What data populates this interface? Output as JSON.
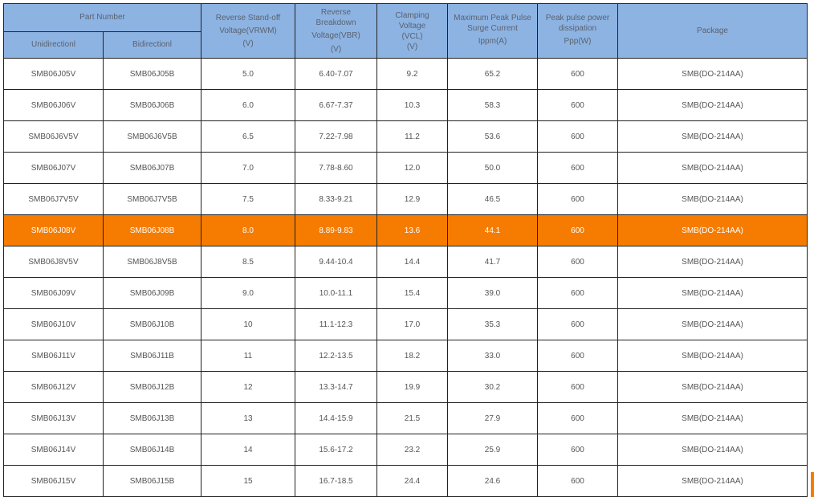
{
  "header": {
    "part_number": "Part Number",
    "unidirectional": "Unidirectionl",
    "bidirectional": "Bidirectionl",
    "vrwm": [
      "Reverse Stand-off",
      "Voltage(VRWM)",
      "(V)"
    ],
    "vbr": [
      "Reverse",
      "Breakdown",
      "Voltage(VBR)",
      "(V)"
    ],
    "vcl": [
      "Clamping",
      "Voltage",
      "(VCL)",
      "(V)"
    ],
    "ippm": [
      "Maximum Peak Pulse",
      "Surge Current",
      "Ippm(A)"
    ],
    "ppp": [
      "Peak pulse power",
      "dissipation",
      "Ppp(W)"
    ],
    "package": "Package"
  },
  "highlight_color": "#f57c00",
  "header_color": "#8db3e2",
  "highlighted_row": 5,
  "rows": [
    [
      "SMB06J05V",
      "SMB06J05B",
      "5.0",
      "6.40-7.07",
      "9.2",
      "65.2",
      "600",
      "SMB(DO-214AA)"
    ],
    [
      "SMB06J06V",
      "SMB06J06B",
      "6.0",
      "6.67-7.37",
      "10.3",
      "58.3",
      "600",
      "SMB(DO-214AA)"
    ],
    [
      "SMB06J6V5V",
      "SMB06J6V5B",
      "6.5",
      "7.22-7.98",
      "11.2",
      "53.6",
      "600",
      "SMB(DO-214AA)"
    ],
    [
      "SMB06J07V",
      "SMB06J07B",
      "7.0",
      "7.78-8.60",
      "12.0",
      "50.0",
      "600",
      "SMB(DO-214AA)"
    ],
    [
      "SMB06J7V5V",
      "SMB06J7V5B",
      "7.5",
      "8.33-9.21",
      "12.9",
      "46.5",
      "600",
      "SMB(DO-214AA)"
    ],
    [
      "SMB06J08V",
      "SMB06J08B",
      "8.0",
      "8.89-9.83",
      "13.6",
      "44.1",
      "600",
      "SMB(DO-214AA)"
    ],
    [
      "SMB06J8V5V",
      "SMB06J8V5B",
      "8.5",
      "9.44-10.4",
      "14.4",
      "41.7",
      "600",
      "SMB(DO-214AA)"
    ],
    [
      "SMB06J09V",
      "SMB06J09B",
      "9.0",
      "10.0-11.1",
      "15.4",
      "39.0",
      "600",
      "SMB(DO-214AA)"
    ],
    [
      "SMB06J10V",
      "SMB06J10B",
      "10",
      "11.1-12.3",
      "17.0",
      "35.3",
      "600",
      "SMB(DO-214AA)"
    ],
    [
      "SMB06J11V",
      "SMB06J11B",
      "11",
      "12.2-13.5",
      "18.2",
      "33.0",
      "600",
      "SMB(DO-214AA)"
    ],
    [
      "SMB06J12V",
      "SMB06J12B",
      "12",
      "13.3-14.7",
      "19.9",
      "30.2",
      "600",
      "SMB(DO-214AA)"
    ],
    [
      "SMB06J13V",
      "SMB06J13B",
      "13",
      "14.4-15.9",
      "21.5",
      "27.9",
      "600",
      "SMB(DO-214AA)"
    ],
    [
      "SMB06J14V",
      "SMB06J14B",
      "14",
      "15.6-17.2",
      "23.2",
      "25.9",
      "600",
      "SMB(DO-214AA)"
    ],
    [
      "SMB06J15V",
      "SMB06J15B",
      "15",
      "16.7-18.5",
      "24.4",
      "24.6",
      "600",
      "SMB(DO-214AA)"
    ]
  ]
}
